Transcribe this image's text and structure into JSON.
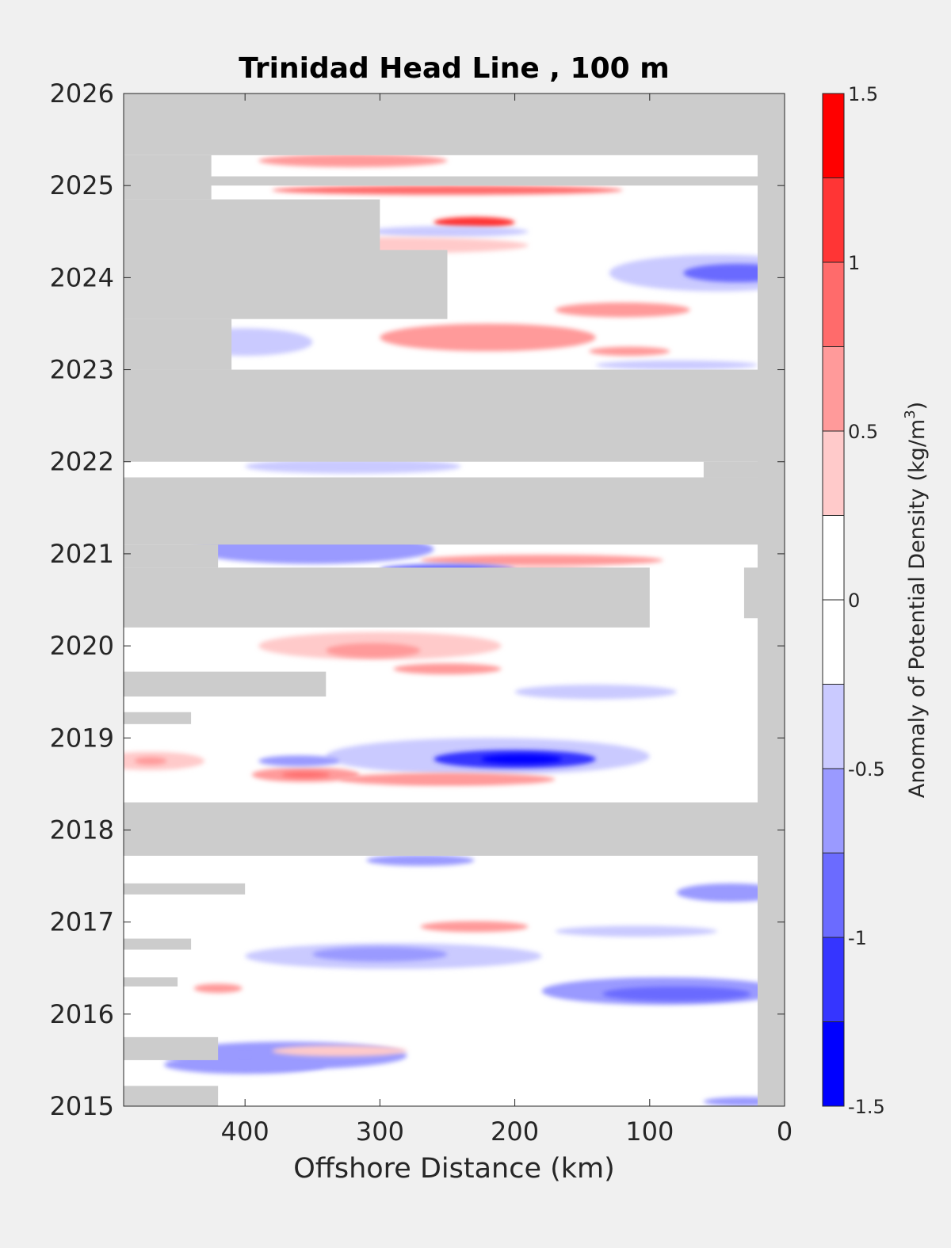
{
  "chart_data": {
    "type": "heatmap",
    "title": "Trinidad Head Line , 100 m",
    "xlabel": "Offshore Distance (km)",
    "ylabel": "",
    "x_reversed": true,
    "xlim": [
      0,
      490
    ],
    "xticks": [
      400,
      300,
      200,
      100,
      0
    ],
    "ylim": [
      2015,
      2026
    ],
    "yticks": [
      2015,
      2016,
      2017,
      2018,
      2019,
      2020,
      2021,
      2022,
      2023,
      2024,
      2025,
      2026
    ],
    "colorbar": {
      "label": "Anomaly of Potential Density (kg/m",
      "label_superscript": "3",
      "label_suffix": ")",
      "range": [
        -1.5,
        1.5
      ],
      "ticks": [
        1.5,
        1,
        0.5,
        0,
        -0.5,
        -1,
        -1.5
      ],
      "levels": [
        {
          "from": 1.25,
          "to": 1.5,
          "color": "#ff0000"
        },
        {
          "from": 1.0,
          "to": 1.25,
          "color": "#ff3535"
        },
        {
          "from": 0.75,
          "to": 1.0,
          "color": "#ff6b6b"
        },
        {
          "from": 0.5,
          "to": 0.75,
          "color": "#ff9a9a"
        },
        {
          "from": 0.25,
          "to": 0.5,
          "color": "#ffcaca"
        },
        {
          "from": 0.0,
          "to": 0.25,
          "color": "#ffffff"
        },
        {
          "from": -0.25,
          "to": 0.0,
          "color": "#ffffff"
        },
        {
          "from": -0.5,
          "to": -0.25,
          "color": "#cacaff"
        },
        {
          "from": -0.75,
          "to": -0.5,
          "color": "#9a9aff"
        },
        {
          "from": -1.0,
          "to": -0.75,
          "color": "#6b6bff"
        },
        {
          "from": -1.25,
          "to": -1.0,
          "color": "#3535ff"
        },
        {
          "from": -1.5,
          "to": -1.25,
          "color": "#0000ff"
        }
      ]
    },
    "nodata_color": "#cccccc",
    "nodata_bands": [
      {
        "t0": 2025.33,
        "t1": 2026.0,
        "x0": 0,
        "x1": 490
      },
      {
        "t0": 2024.85,
        "t1": 2025.33,
        "x0": 425,
        "x1": 490
      },
      {
        "t0": 2025.0,
        "t1": 2025.1,
        "x0": 0,
        "x1": 450
      },
      {
        "t0": 2024.3,
        "t1": 2024.85,
        "x0": 300,
        "x1": 490
      },
      {
        "t0": 2023.55,
        "t1": 2024.3,
        "x0": 250,
        "x1": 490
      },
      {
        "t0": 2023.0,
        "t1": 2023.55,
        "x0": 410,
        "x1": 490
      },
      {
        "t0": 2022.0,
        "t1": 2023.0,
        "x0": 0,
        "x1": 490
      },
      {
        "t0": 2021.83,
        "t1": 2022.0,
        "x0": 0,
        "x1": 60
      },
      {
        "t0": 2021.1,
        "t1": 2021.83,
        "x0": 0,
        "x1": 490
      },
      {
        "t0": 2020.85,
        "t1": 2021.1,
        "x0": 420,
        "x1": 490
      },
      {
        "t0": 2020.2,
        "t1": 2020.85,
        "x0": 100,
        "x1": 490
      },
      {
        "t0": 2020.3,
        "t1": 2020.85,
        "x0": 0,
        "x1": 30
      },
      {
        "t0": 2019.45,
        "t1": 2019.72,
        "x0": 340,
        "x1": 490
      },
      {
        "t0": 2019.15,
        "t1": 2019.28,
        "x0": 440,
        "x1": 490
      },
      {
        "t0": 2017.72,
        "t1": 2018.3,
        "x0": 0,
        "x1": 490
      },
      {
        "t0": 2017.3,
        "t1": 2017.42,
        "x0": 400,
        "x1": 490
      },
      {
        "t0": 2016.7,
        "t1": 2016.82,
        "x0": 440,
        "x1": 490
      },
      {
        "t0": 2016.3,
        "t1": 2016.4,
        "x0": 450,
        "x1": 490
      },
      {
        "t0": 2015.5,
        "t1": 2015.75,
        "x0": 420,
        "x1": 490
      },
      {
        "t0": 2015.0,
        "t1": 2015.22,
        "x0": 420,
        "x1": 490
      },
      {
        "t0": 2015.0,
        "t1": 2026.0,
        "x0": 0,
        "x1": 20
      }
    ],
    "anomalies": [
      {
        "t": 2025.27,
        "x": 320,
        "w": 70,
        "h": 0.07,
        "v": 0.6
      },
      {
        "t": 2024.95,
        "x": 250,
        "w": 130,
        "h": 0.05,
        "v": 0.8
      },
      {
        "t": 2024.6,
        "x": 230,
        "w": 30,
        "h": 0.06,
        "v": 1.1
      },
      {
        "t": 2024.5,
        "x": 250,
        "w": 60,
        "h": 0.06,
        "v": -0.5
      },
      {
        "t": 2024.35,
        "x": 300,
        "w": 110,
        "h": 0.09,
        "v": 0.4
      },
      {
        "t": 2024.05,
        "x": 50,
        "w": 80,
        "h": 0.2,
        "v": -0.5
      },
      {
        "t": 2024.05,
        "x": 35,
        "w": 40,
        "h": 0.1,
        "v": -0.9
      },
      {
        "t": 2023.65,
        "x": 120,
        "w": 50,
        "h": 0.08,
        "v": 0.7
      },
      {
        "t": 2023.35,
        "x": 220,
        "w": 80,
        "h": 0.15,
        "v": 0.6
      },
      {
        "t": 2023.3,
        "x": 400,
        "w": 50,
        "h": 0.15,
        "v": -0.35
      },
      {
        "t": 2023.2,
        "x": 115,
        "w": 30,
        "h": 0.05,
        "v": 0.55
      },
      {
        "t": 2023.05,
        "x": 80,
        "w": 60,
        "h": 0.05,
        "v": -0.4
      },
      {
        "t": 2021.95,
        "x": 320,
        "w": 80,
        "h": 0.08,
        "v": -0.35
      },
      {
        "t": 2021.05,
        "x": 350,
        "w": 90,
        "h": 0.16,
        "v": -0.6
      },
      {
        "t": 2020.93,
        "x": 180,
        "w": 90,
        "h": 0.06,
        "v": 0.5
      },
      {
        "t": 2020.83,
        "x": 250,
        "w": 50,
        "h": 0.06,
        "v": -0.8
      },
      {
        "t": 2020.8,
        "x": 180,
        "w": 50,
        "h": 0.05,
        "v": 0.6
      },
      {
        "t": 2020.0,
        "x": 300,
        "w": 90,
        "h": 0.15,
        "v": 0.45
      },
      {
        "t": 2019.95,
        "x": 305,
        "w": 35,
        "h": 0.08,
        "v": 0.7
      },
      {
        "t": 2019.75,
        "x": 250,
        "w": 40,
        "h": 0.06,
        "v": 0.6
      },
      {
        "t": 2019.5,
        "x": 140,
        "w": 60,
        "h": 0.08,
        "v": -0.3
      },
      {
        "t": 2018.8,
        "x": 220,
        "w": 120,
        "h": 0.2,
        "v": -0.5
      },
      {
        "t": 2018.77,
        "x": 200,
        "w": 60,
        "h": 0.1,
        "v": -1.05
      },
      {
        "t": 2018.77,
        "x": 195,
        "w": 30,
        "h": 0.05,
        "v": -1.4
      },
      {
        "t": 2018.75,
        "x": 470,
        "w": 40,
        "h": 0.1,
        "v": 0.45
      },
      {
        "t": 2018.75,
        "x": 470,
        "w": 12,
        "h": 0.04,
        "v": 0.7
      },
      {
        "t": 2018.6,
        "x": 355,
        "w": 40,
        "h": 0.08,
        "v": 0.5
      },
      {
        "t": 2018.6,
        "x": 355,
        "w": 18,
        "h": 0.03,
        "v": 0.8
      },
      {
        "t": 2018.55,
        "x": 250,
        "w": 80,
        "h": 0.07,
        "v": 0.5
      },
      {
        "t": 2018.55,
        "x": 250,
        "w": 40,
        "h": 0.03,
        "v": 0.7
      },
      {
        "t": 2018.75,
        "x": 360,
        "w": 30,
        "h": 0.06,
        "v": -0.55
      },
      {
        "t": 2017.67,
        "x": 270,
        "w": 40,
        "h": 0.06,
        "v": -0.7
      },
      {
        "t": 2017.32,
        "x": 40,
        "w": 40,
        "h": 0.1,
        "v": -0.55
      },
      {
        "t": 2016.95,
        "x": 230,
        "w": 40,
        "h": 0.06,
        "v": 0.5
      },
      {
        "t": 2016.9,
        "x": 110,
        "w": 60,
        "h": 0.06,
        "v": -0.5
      },
      {
        "t": 2016.63,
        "x": 290,
        "w": 110,
        "h": 0.14,
        "v": -0.5
      },
      {
        "t": 2016.65,
        "x": 300,
        "w": 50,
        "h": 0.08,
        "v": -0.65
      },
      {
        "t": 2016.25,
        "x": 90,
        "w": 90,
        "h": 0.15,
        "v": -0.6
      },
      {
        "t": 2016.22,
        "x": 80,
        "w": 55,
        "h": 0.08,
        "v": -0.95
      },
      {
        "t": 2016.28,
        "x": 420,
        "w": 18,
        "h": 0.05,
        "v": 0.6
      },
      {
        "t": 2015.55,
        "x": 370,
        "w": 90,
        "h": 0.15,
        "v": -0.55
      },
      {
        "t": 2015.45,
        "x": 400,
        "w": 60,
        "h": 0.1,
        "v": -0.6
      },
      {
        "t": 2015.6,
        "x": 330,
        "w": 50,
        "h": 0.06,
        "v": 0.35
      },
      {
        "t": 2015.05,
        "x": 30,
        "w": 30,
        "h": 0.05,
        "v": -0.6
      }
    ]
  }
}
